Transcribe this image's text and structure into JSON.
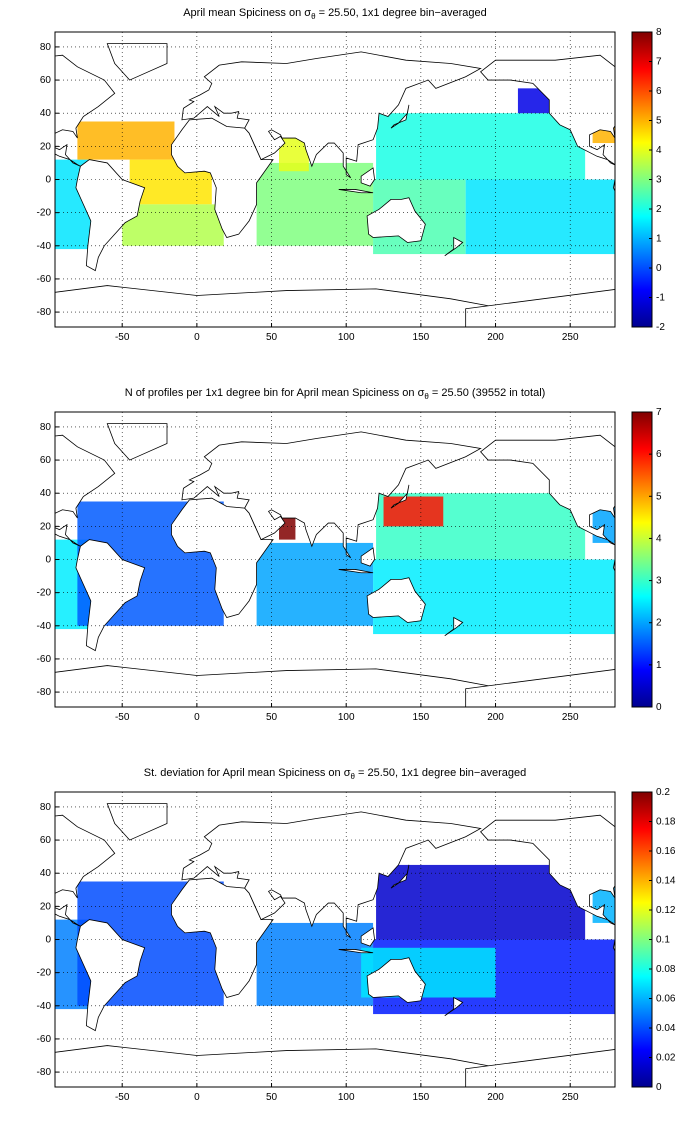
{
  "chart_data": [
    {
      "type": "map",
      "title_parts": [
        "April mean Spiciness on σ",
        "θ",
        " = 25.50, 1x1 degree bin−averaged"
      ],
      "xlim": [
        -95,
        280
      ],
      "ylim": [
        -89,
        89
      ],
      "xticks": [
        -50,
        0,
        50,
        100,
        150,
        200,
        250
      ],
      "yticks": [
        -80,
        -60,
        -40,
        -20,
        0,
        20,
        40,
        60,
        80
      ],
      "grid": true,
      "colormap": "jet",
      "clim": [
        -2,
        8
      ],
      "cticks": [
        -2,
        -1,
        0,
        1,
        2,
        3,
        4,
        5,
        6,
        7,
        8
      ],
      "regions": [
        {
          "lon": [
            -95,
            -70
          ],
          "lat": [
            -42,
            12
          ],
          "value": 1.5
        },
        {
          "lon": [
            -80,
            -15
          ],
          "lat": [
            12,
            35
          ],
          "value": 5
        },
        {
          "lon": [
            -45,
            10
          ],
          "lat": [
            -15,
            12
          ],
          "value": 4.5
        },
        {
          "lon": [
            -50,
            18
          ],
          "lat": [
            -40,
            -15
          ],
          "value": 3.5
        },
        {
          "lon": [
            40,
            118
          ],
          "lat": [
            -40,
            10
          ],
          "value": 3
        },
        {
          "lon": [
            55,
            75
          ],
          "lat": [
            5,
            25
          ],
          "value": 4
        },
        {
          "lon": [
            118,
            180
          ],
          "lat": [
            -45,
            0
          ],
          "value": 2.5
        },
        {
          "lon": [
            180,
            285
          ],
          "lat": [
            -45,
            0
          ],
          "value": 1.5
        },
        {
          "lon": [
            120,
            260
          ],
          "lat": [
            0,
            40
          ],
          "value": 2
        },
        {
          "lon": [
            215,
            240
          ],
          "lat": [
            40,
            55
          ],
          "value": -1
        },
        {
          "lon": [
            265,
            285
          ],
          "lat": [
            22,
            45
          ],
          "value": 5
        }
      ]
    },
    {
      "type": "map",
      "title_parts": [
        "N of profiles per 1x1 degree bin for April mean Spiciness on σ",
        "θ",
        " = 25.50 (39552 in total)"
      ],
      "xlim": [
        -95,
        280
      ],
      "ylim": [
        -89,
        89
      ],
      "xticks": [
        -50,
        0,
        50,
        100,
        150,
        200,
        250
      ],
      "yticks": [
        -80,
        -60,
        -40,
        -20,
        0,
        20,
        40,
        60,
        80
      ],
      "grid": true,
      "colormap": "jet",
      "clim": [
        0,
        7
      ],
      "cticks": [
        0,
        1,
        2,
        3,
        4,
        5,
        6,
        7
      ],
      "regions": [
        {
          "lon": [
            -95,
            -70
          ],
          "lat": [
            -42,
            12
          ],
          "value": 2.5
        },
        {
          "lon": [
            -80,
            18
          ],
          "lat": [
            -40,
            35
          ],
          "value": 1.5
        },
        {
          "lon": [
            40,
            118
          ],
          "lat": [
            -40,
            10
          ],
          "value": 2
        },
        {
          "lon": [
            55,
            66
          ],
          "lat": [
            12,
            25
          ],
          "value": 7
        },
        {
          "lon": [
            118,
            285
          ],
          "lat": [
            -45,
            0
          ],
          "value": 2.5
        },
        {
          "lon": [
            120,
            260
          ],
          "lat": [
            0,
            40
          ],
          "value": 3
        },
        {
          "lon": [
            125,
            165
          ],
          "lat": [
            20,
            38
          ],
          "value": 6
        },
        {
          "lon": [
            265,
            285
          ],
          "lat": [
            10,
            40
          ],
          "value": 2
        }
      ]
    },
    {
      "type": "map",
      "title_parts": [
        "St. deviation for April mean Spiciness on σ",
        "θ",
        " = 25.50, 1x1 degree bin−averaged"
      ],
      "xlim": [
        -95,
        280
      ],
      "ylim": [
        -89,
        89
      ],
      "xticks": [
        -50,
        0,
        50,
        100,
        150,
        200,
        250
      ],
      "yticks": [
        -80,
        -60,
        -40,
        -20,
        0,
        20,
        40,
        60,
        80
      ],
      "grid": true,
      "colormap": "jet",
      "clim": [
        0,
        0.2
      ],
      "cticks": [
        0,
        0.02,
        0.04,
        0.06,
        0.08,
        0.1,
        0.12,
        0.14,
        0.16,
        0.18,
        0.2
      ],
      "regions": [
        {
          "lon": [
            -95,
            -70
          ],
          "lat": [
            -42,
            12
          ],
          "value": 0.05
        },
        {
          "lon": [
            -80,
            18
          ],
          "lat": [
            -40,
            35
          ],
          "value": 0.04
        },
        {
          "lon": [
            40,
            118
          ],
          "lat": [
            -40,
            10
          ],
          "value": 0.05
        },
        {
          "lon": [
            118,
            285
          ],
          "lat": [
            -45,
            0
          ],
          "value": 0.03
        },
        {
          "lon": [
            120,
            260
          ],
          "lat": [
            0,
            45
          ],
          "value": 0.015
        },
        {
          "lon": [
            110,
            200
          ],
          "lat": [
            -35,
            -5
          ],
          "value": 0.07
        },
        {
          "lon": [
            265,
            285
          ],
          "lat": [
            10,
            40
          ],
          "value": 0.06
        }
      ]
    }
  ]
}
